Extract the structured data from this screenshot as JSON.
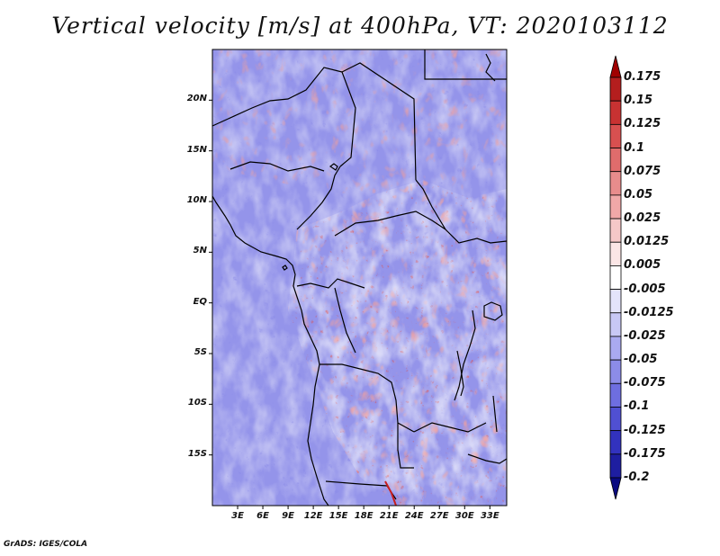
{
  "title": "Vertical velocity [m/s] at 400hPa, VT: 2020103112",
  "credit": "GrADS: IGES/COLA",
  "map": {
    "lat_range": [
      -20,
      25
    ],
    "lon_range": [
      0,
      35
    ],
    "y_tick_labels": [
      {
        "label": "20N",
        "lat": 20
      },
      {
        "label": "15N",
        "lat": 15
      },
      {
        "label": "10N",
        "lat": 10
      },
      {
        "label": "5N",
        "lat": 5
      },
      {
        "label": "EQ",
        "lat": 0
      },
      {
        "label": "5S",
        "lat": -5
      },
      {
        "label": "10S",
        "lat": -10
      },
      {
        "label": "15S",
        "lat": -15
      }
    ],
    "x_tick_labels": [
      {
        "label": "3E",
        "lon": 3
      },
      {
        "label": "6E",
        "lon": 6
      },
      {
        "label": "9E",
        "lon": 9
      },
      {
        "label": "12E",
        "lon": 12
      },
      {
        "label": "15E",
        "lon": 15
      },
      {
        "label": "18E",
        "lon": 18
      },
      {
        "label": "21E",
        "lon": 21
      },
      {
        "label": "24E",
        "lon": 24
      },
      {
        "label": "27E",
        "lon": 27
      },
      {
        "label": "30E",
        "lon": 30
      },
      {
        "label": "33E",
        "lon": 33
      }
    ]
  },
  "colorbar": {
    "levels": [
      "0.175",
      "0.15",
      "0.125",
      "0.1",
      "0.075",
      "0.05",
      "0.025",
      "0.0125",
      "0.005",
      "-0.005",
      "-0.0125",
      "-0.025",
      "-0.05",
      "-0.075",
      "-0.1",
      "-0.125",
      "-0.175",
      "-0.2"
    ],
    "colors": [
      "#a00000",
      "#b41e1e",
      "#c83232",
      "#d85050",
      "#e06c6c",
      "#e88c8c",
      "#f0a8a8",
      "#f5c8c8",
      "#fbe6e6",
      "#ffffff",
      "#e4e4fb",
      "#c8c8f5",
      "#aaaaf0",
      "#8c8ce8",
      "#6e6ee0",
      "#5050d2",
      "#3232be",
      "#1e1ea0",
      "#0a0a80"
    ]
  },
  "colors": {
    "background": "#ffffff",
    "border": "#000000",
    "dominant_field": "#9494ea"
  }
}
